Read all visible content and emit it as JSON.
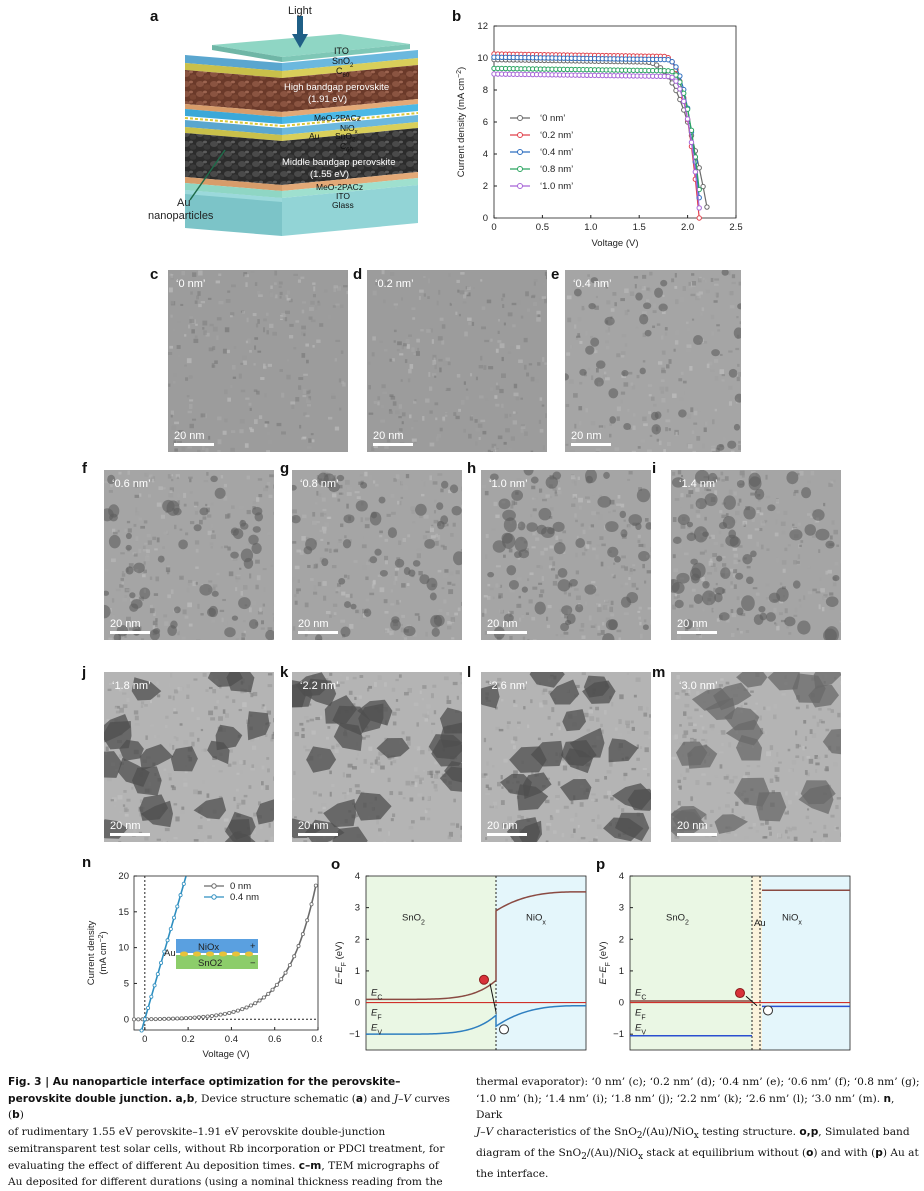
{
  "panel_letters": {
    "a": "a",
    "b": "b",
    "c": "c",
    "d": "d",
    "e": "e",
    "f": "f",
    "g": "g",
    "h": "h",
    "i": "i",
    "j": "j",
    "k": "k",
    "l": "l",
    "m": "m",
    "n": "n",
    "o": "o",
    "p": "p"
  },
  "schematic": {
    "light": "Light",
    "ito": "ITO",
    "sno2": "SnO",
    "c60": "C",
    "high_perov": "High bandgap perovskite",
    "high_ev": "(1.91 eV)",
    "meo": "MeO-2PACz",
    "niox": "NiO",
    "au": "Au",
    "sno2b": "SnO",
    "c60b": "C",
    "mid_perov": "Middle bandgap perovskite",
    "mid_ev": "(1.55 eV)",
    "meo2": "MeO-2PACz",
    "ito2": "ITO",
    "glass": "Glass",
    "au_np1": "Au",
    "au_np2": "nanoparticles"
  },
  "tem_panels": [
    {
      "letter": "c",
      "label": "‘0 nm’",
      "scale": "20 nm"
    },
    {
      "letter": "d",
      "label": "‘0.2 nm’",
      "scale": "20 nm"
    },
    {
      "letter": "e",
      "label": "‘0.4 nm’",
      "scale": "20 nm"
    },
    {
      "letter": "f",
      "label": "‘0.6 nm’",
      "scale": "20 nm"
    },
    {
      "letter": "g",
      "label": "‘0.8 nm’",
      "scale": "20 nm"
    },
    {
      "letter": "h",
      "label": "‘1.0 nm’",
      "scale": "20 nm"
    },
    {
      "letter": "i",
      "label": "‘1.4 nm’",
      "scale": "20 nm"
    },
    {
      "letter": "j",
      "label": "‘1.8 nm’",
      "scale": "20 nm"
    },
    {
      "letter": "k",
      "label": "‘2.2 nm’",
      "scale": "20 nm"
    },
    {
      "letter": "l",
      "label": "‘2.6 nm’",
      "scale": "20 nm"
    },
    {
      "letter": "m",
      "label": "‘3.0 nm’",
      "scale": "20 nm"
    }
  ],
  "chart_data": [
    {
      "panel": "b",
      "type": "line",
      "xlabel": "Voltage (V)",
      "ylabel": "Current density (mA cm",
      "ylabel_sup": "−2",
      "ylabel_end": ")",
      "xlim": [
        0,
        2.5
      ],
      "ylim": [
        0,
        12
      ],
      "xticks": [
        "0",
        "0.5",
        "1.0",
        "1.5",
        "2.0",
        "2.5"
      ],
      "yticks": [
        "0",
        "2",
        "4",
        "6",
        "8",
        "10",
        "12"
      ],
      "legend_position": "left-middle",
      "series": [
        {
          "name": "‘0 nm’",
          "color": "#6b6b6b",
          "jsc": 9.9,
          "voc": 2.22,
          "knee": 1.55
        },
        {
          "name": "‘0.2 nm’",
          "color": "#e0404a",
          "jsc": 10.25,
          "voc": 2.12,
          "knee": 1.75
        },
        {
          "name": "‘0.4 nm’",
          "color": "#2f6fc0",
          "jsc": 10.05,
          "voc": 2.14,
          "knee": 1.78
        },
        {
          "name": "‘0.8 nm’",
          "color": "#2aa560",
          "jsc": 9.35,
          "voc": 2.15,
          "knee": 1.8
        },
        {
          "name": "‘1.0 nm’",
          "color": "#a765d8",
          "jsc": 9.0,
          "voc": 2.13,
          "knee": 1.8
        }
      ]
    },
    {
      "panel": "n",
      "type": "line",
      "xlabel": "Voltage (V)",
      "ylabel": "Current density",
      "ylabel2": "(mA cm",
      "ylabel2_sup": "−2",
      "ylabel2_end": ")",
      "xlim": [
        -0.05,
        0.8
      ],
      "ylim": [
        -1.5,
        20
      ],
      "xticks": [
        "0",
        "0.2",
        "0.4",
        "0.6",
        "0.8"
      ],
      "yticks": [
        "0",
        "5",
        "10",
        "15",
        "20"
      ],
      "series": [
        {
          "name": "0 nm",
          "color": "#6b6b6b",
          "slope": null
        },
        {
          "name": "0.4 nm",
          "color": "#2f8fc0",
          "slope": 105
        }
      ],
      "inset": {
        "top": "NiOx",
        "bottom": "SnO2",
        "au": "Au",
        "plus": "+",
        "minus": "−"
      }
    },
    {
      "panel": "o",
      "type": "line",
      "ylabel": "E",
      "ylabel_sub1": "−E",
      "ylabel_sub2": "F",
      "ylabel_end": " (eV)",
      "ylim": [
        -1.5,
        4
      ],
      "yticks": [
        "4",
        "3",
        "2",
        "1",
        "0",
        "−1"
      ],
      "left_region": "SnO",
      "right_region": "NiO",
      "ec": "E",
      "ef": "E",
      "ev": "E",
      "ec_sub": "C",
      "ef_sub": "F",
      "ev_sub": "V"
    },
    {
      "panel": "p",
      "type": "line",
      "ylabel": "E",
      "ylabel_sub1": "−E",
      "ylabel_sub2": "F",
      "ylabel_end": " (eV)",
      "ylim": [
        -1.5,
        4
      ],
      "yticks": [
        "4",
        "3",
        "2",
        "1",
        "0",
        "−1"
      ],
      "left_region": "SnO",
      "right_region": "NiO",
      "middle": "Au",
      "ec": "E",
      "ef": "E",
      "ev": "E",
      "ec_sub": "C",
      "ef_sub": "F",
      "ev_sub": "V"
    }
  ],
  "caption": {
    "fig_label": "Fig. 3 | Au nanoparticle interface optimization for the perovskite–perovskite double junction.",
    "left_rest_1": "a",
    "left_rest_2": ",",
    "left_rest_3": "b",
    "left_text_1": ", Device structure schematic (",
    "left_text_2": "a",
    "left_text_3": ") and",
    "left_text_4": "J",
    "left_text_5": "–",
    "left_text_6": "V",
    "left_text_7": "curves (",
    "left_text_8": "b",
    "left_text_9": ")",
    "left_line3": "of rudimentary 1.55 eV perovskite–1.91 eV perovskite double-junction",
    "left_line4": "semitransparent test solar cells, without Rb incorporation or PDCl treatment, for",
    "left_line5": "evaluating the effect of different Au deposition times.",
    "left_cm": "c–m",
    "left_line5b": ", TEM micrographs of",
    "left_line6": "Au deposited for different durations (using a nominal thickness reading from the",
    "right_line1": "thermal evaporator): ‘0 nm’ (c); ‘0.2 nm’ (d); ‘0.4 nm’ (e); ‘0.6 nm’ (f); ‘0.8 nm’ (g);",
    "right_line2": "‘1.0 nm’ (h); ‘1.4 nm’ (i); ‘1.8 nm’ (j); ‘2.2 nm’ (k); ‘2.6 nm’ (l); ‘3.0 nm’ (m).",
    "right_n": "n",
    "right_line2b": ", Dark",
    "right_line3a": "J",
    "right_line3b": "–",
    "right_line3c": "V",
    "right_line3d": " characteristics of the SnO",
    "right_line3e": "2",
    "right_line3f": "/(Au)/NiO",
    "right_line3g": "x",
    "right_line3h": " testing structure. ",
    "right_op": "o",
    "right_comma": ",",
    "right_p": "p",
    "right_line3i": ", Simulated band",
    "right_line4": "diagram of the SnO",
    "right_line4b": "2",
    "right_line4c": "/(Au)/NiO",
    "right_line4d": "x",
    "right_line4e": " stack at equilibrium without (",
    "right_line4f": "o",
    "right_line4g": ") and with (",
    "right_line4h": "p",
    "right_line4i": ") Au at",
    "right_line5": "the interface."
  }
}
